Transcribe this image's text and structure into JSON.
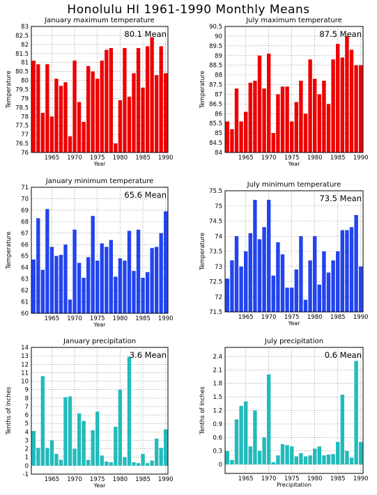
{
  "figure": {
    "title": "Honolulu HI   1961-1990 Monthly Means"
  },
  "colors": {
    "red": "#ee0000",
    "blue": "#2244ee",
    "cyan": "#22bbbb",
    "grid": "#666666"
  },
  "chart_data": [
    {
      "type": "bar",
      "title": "January maximum temperature",
      "annotation": "80.1 Mean",
      "xlabel": "Year",
      "ylabel": "Temperature",
      "color": "#ee0000",
      "ylim": [
        76,
        83
      ],
      "yticks": [
        "76",
        "76.5",
        "77",
        "77.5",
        "78",
        "78.5",
        "79",
        "79.5",
        "80",
        "80.5",
        "81",
        "81.5",
        "82",
        "82.5",
        "83"
      ],
      "xticks": [
        1965,
        1970,
        1975,
        1980,
        1985,
        1990
      ],
      "x": [
        1961,
        1962,
        1963,
        1964,
        1965,
        1966,
        1967,
        1968,
        1969,
        1970,
        1971,
        1972,
        1973,
        1974,
        1975,
        1976,
        1977,
        1978,
        1979,
        1980,
        1981,
        1982,
        1983,
        1984,
        1985,
        1986,
        1987,
        1988,
        1989,
        1990
      ],
      "values": [
        81.1,
        80.9,
        78.2,
        80.9,
        78.0,
        80.1,
        79.7,
        79.9,
        76.9,
        81.1,
        78.8,
        77.7,
        80.8,
        80.5,
        80.1,
        81.1,
        81.7,
        81.8,
        76.5,
        78.9,
        81.8,
        79.1,
        80.4,
        81.8,
        79.6,
        81.9,
        82.4,
        80.3,
        81.9,
        80.4
      ],
      "grid": true
    },
    {
      "type": "bar",
      "title": "July maximum temperature",
      "annotation": "87.5 Mean",
      "xlabel": "Year",
      "ylabel": "Temperature",
      "color": "#ee0000",
      "ylim": [
        84,
        90.5
      ],
      "yticks": [
        "84",
        "84.5",
        "85",
        "85.5",
        "86",
        "86.5",
        "87",
        "87.5",
        "88",
        "88.5",
        "89",
        "89.5",
        "90",
        "90.5"
      ],
      "xticks": [
        1965,
        1970,
        1975,
        1980,
        1985,
        1990
      ],
      "x": [
        1961,
        1962,
        1963,
        1964,
        1965,
        1966,
        1967,
        1968,
        1969,
        1970,
        1971,
        1972,
        1973,
        1974,
        1975,
        1976,
        1977,
        1978,
        1979,
        1980,
        1981,
        1982,
        1983,
        1984,
        1985,
        1986,
        1987,
        1988,
        1989,
        1990
      ],
      "values": [
        85.6,
        85.2,
        87.3,
        85.6,
        86.1,
        87.6,
        87.7,
        89.0,
        87.3,
        89.1,
        85.0,
        87.0,
        87.4,
        87.4,
        85.6,
        86.6,
        87.7,
        86.0,
        88.8,
        87.8,
        87.0,
        87.7,
        86.5,
        88.8,
        89.6,
        88.9,
        90.0,
        89.3,
        88.5,
        88.5
      ],
      "grid": true
    },
    {
      "type": "bar",
      "title": "January minimum temperature",
      "annotation": "65.6 Mean",
      "xlabel": "Year",
      "ylabel": "Temperature",
      "color": "#2244ee",
      "ylim": [
        60,
        71
      ],
      "yticks": [
        "60",
        "61",
        "62",
        "63",
        "64",
        "65",
        "66",
        "67",
        "68",
        "69",
        "70",
        "71"
      ],
      "xticks": [
        1965,
        1970,
        1975,
        1980,
        1985,
        1990
      ],
      "x": [
        1961,
        1962,
        1963,
        1964,
        1965,
        1966,
        1967,
        1968,
        1969,
        1970,
        1971,
        1972,
        1973,
        1974,
        1975,
        1976,
        1977,
        1978,
        1979,
        1980,
        1981,
        1982,
        1983,
        1984,
        1985,
        1986,
        1987,
        1988,
        1989,
        1990
      ],
      "values": [
        64.7,
        68.3,
        63.8,
        69.1,
        65.8,
        65.0,
        65.1,
        66.0,
        61.2,
        67.3,
        64.4,
        63.1,
        64.9,
        68.5,
        64.6,
        66.1,
        65.8,
        66.4,
        63.2,
        64.8,
        64.6,
        67.2,
        63.7,
        67.3,
        63.1,
        63.6,
        65.7,
        65.8,
        67.0,
        68.9
      ],
      "grid": true
    },
    {
      "type": "bar",
      "title": "July minimum temperature",
      "annotation": "73.5 Mean",
      "xlabel": "Year",
      "ylabel": "Temperature",
      "color": "#2244ee",
      "ylim": [
        71.5,
        75.5
      ],
      "yticks": [
        "71.5",
        "72",
        "72.5",
        "73",
        "73.5",
        "74",
        "74.5",
        "75",
        "75.5"
      ],
      "xticks": [
        1965,
        1970,
        1975,
        1980,
        1985,
        1990
      ],
      "x": [
        1961,
        1962,
        1963,
        1964,
        1965,
        1966,
        1967,
        1968,
        1969,
        1970,
        1971,
        1972,
        1973,
        1974,
        1975,
        1976,
        1977,
        1978,
        1979,
        1980,
        1981,
        1982,
        1983,
        1984,
        1985,
        1986,
        1987,
        1988,
        1989,
        1990
      ],
      "values": [
        72.6,
        73.2,
        74.0,
        73.0,
        73.5,
        74.1,
        75.2,
        73.9,
        74.3,
        75.2,
        72.7,
        73.8,
        73.4,
        72.3,
        72.3,
        72.9,
        74.0,
        71.9,
        73.2,
        74.0,
        72.4,
        73.5,
        72.8,
        73.2,
        73.5,
        74.2,
        74.2,
        74.3,
        74.7,
        73.0
      ],
      "grid": true
    },
    {
      "type": "bar",
      "title": "January precipitation",
      "annotation": "3.6 Mean",
      "xlabel": "Year",
      "ylabel": "Tenths of Inches",
      "color": "#22bbbb",
      "ylim": [
        -1,
        14
      ],
      "yticks": [
        "-1",
        "0",
        "1",
        "2",
        "3",
        "4",
        "5",
        "6",
        "7",
        "8",
        "9",
        "10",
        "11",
        "12",
        "13",
        "14"
      ],
      "xticks": [
        1965,
        1970,
        1975,
        1980,
        1985,
        1990
      ],
      "x": [
        1961,
        1962,
        1963,
        1964,
        1965,
        1966,
        1967,
        1968,
        1969,
        1970,
        1971,
        1972,
        1973,
        1974,
        1975,
        1976,
        1977,
        1978,
        1979,
        1980,
        1981,
        1982,
        1983,
        1984,
        1985,
        1986,
        1987,
        1988,
        1989,
        1990
      ],
      "values": [
        4.1,
        2.1,
        10.6,
        2.1,
        3.0,
        1.4,
        0.7,
        8.1,
        8.2,
        2.0,
        6.2,
        5.3,
        0.7,
        4.2,
        6.4,
        1.2,
        0.5,
        0.4,
        4.6,
        9.0,
        1.0,
        12.9,
        0.4,
        0.3,
        1.4,
        0.3,
        0.6,
        3.2,
        2.1,
        4.3
      ],
      "grid": true
    },
    {
      "type": "bar",
      "title": "July precipitation",
      "annotation": "0.6 Mean",
      "xlabel": "Precipitation",
      "ylabel": "Tenths of Inches",
      "color": "#22bbbb",
      "ylim": [
        -0.2,
        2.6
      ],
      "yticks": [
        "0",
        "0.3",
        "0.6",
        "0.9",
        "1.2",
        "1.5",
        "1.8",
        "2.1",
        "2.4"
      ],
      "xticks": [
        1965,
        1970,
        1975,
        1980,
        1985,
        1990
      ],
      "x": [
        1961,
        1962,
        1963,
        1964,
        1965,
        1966,
        1967,
        1968,
        1969,
        1970,
        1971,
        1972,
        1973,
        1974,
        1975,
        1976,
        1977,
        1978,
        1979,
        1980,
        1981,
        1982,
        1983,
        1984,
        1985,
        1986,
        1987,
        1988,
        1989,
        1990
      ],
      "values": [
        0.3,
        0.1,
        1.0,
        1.3,
        1.4,
        0.4,
        1.2,
        0.3,
        0.6,
        2.0,
        0.05,
        0.2,
        0.45,
        0.43,
        0.4,
        0.18,
        0.25,
        0.18,
        0.2,
        0.35,
        0.4,
        0.2,
        0.22,
        0.23,
        0.5,
        1.55,
        0.3,
        0.15,
        2.3,
        0.5
      ],
      "grid": true
    }
  ]
}
